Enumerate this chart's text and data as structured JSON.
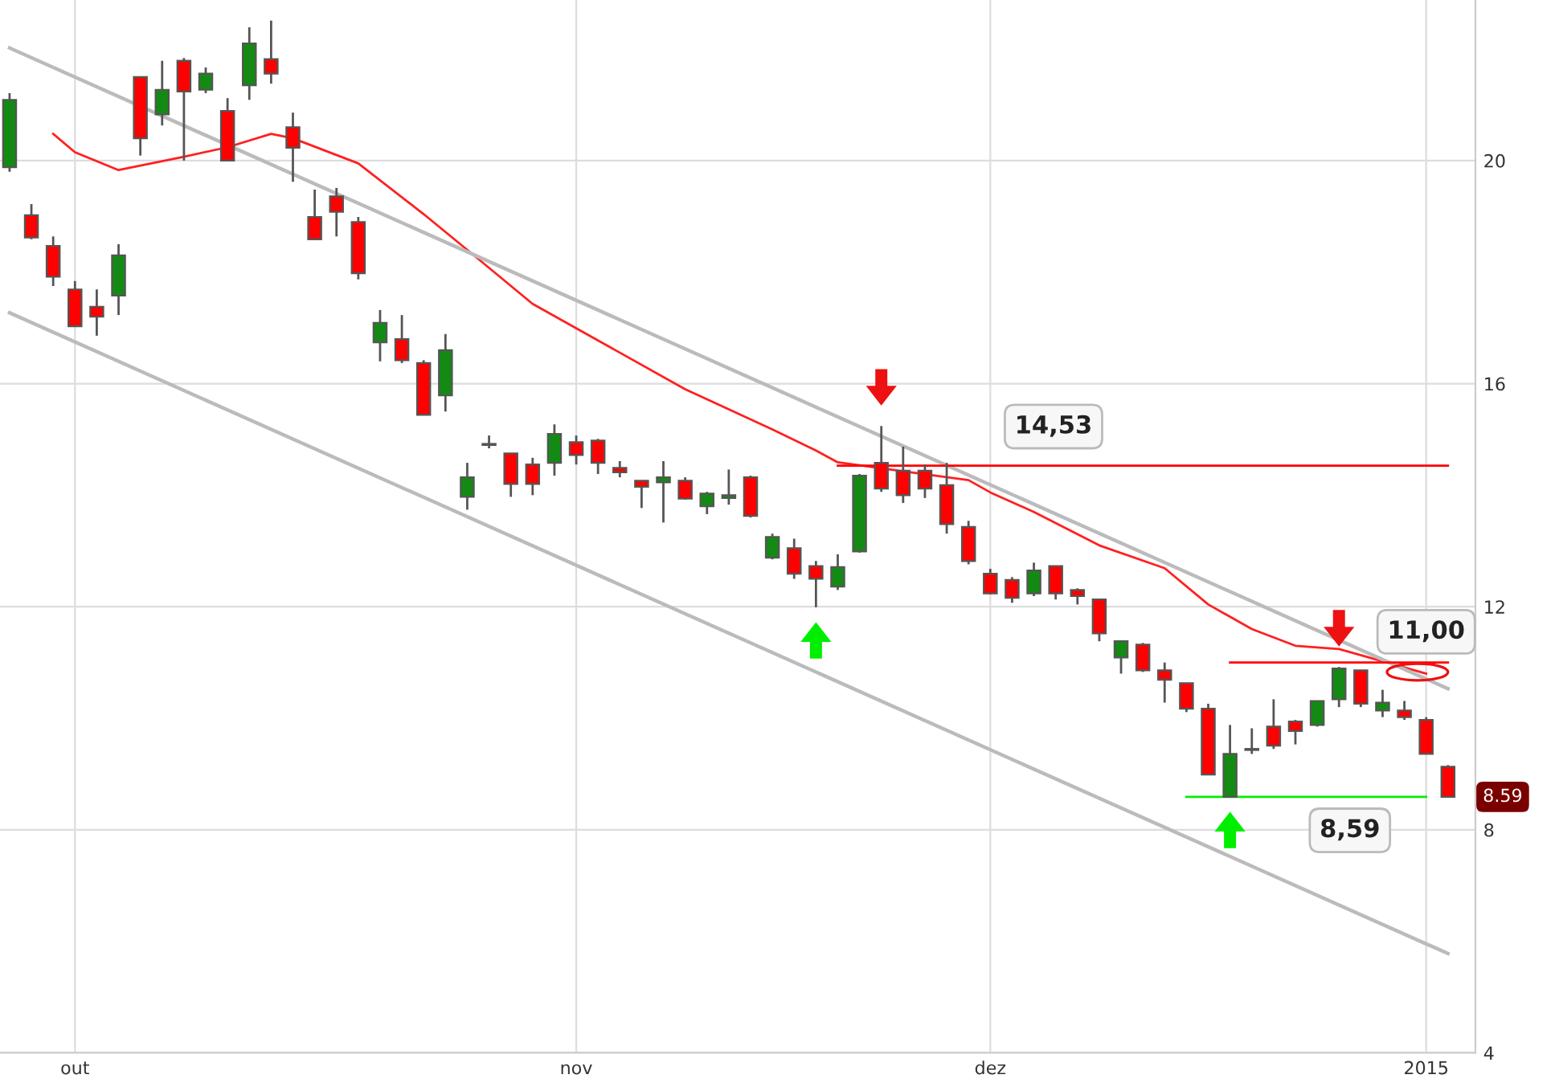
{
  "chart_data": {
    "type": "candlestick",
    "categories": [
      null,
      null,
      null,
      "out",
      null,
      null,
      null,
      null,
      null,
      null,
      null,
      null,
      null,
      null,
      null,
      null,
      null,
      null,
      null,
      null,
      null,
      null,
      null,
      null,
      null,
      null,
      "nov",
      null,
      null,
      null,
      null,
      null,
      null,
      null,
      null,
      null,
      null,
      null,
      null,
      null,
      null,
      null,
      null,
      null,
      null,
      "dez",
      null,
      null,
      null,
      null,
      null,
      null,
      null,
      null,
      null,
      null,
      null,
      null,
      null,
      null,
      null,
      null,
      null,
      null,
      null,
      "2015",
      null
    ],
    "ohlc": [
      [
        19.88,
        21.21,
        19.8,
        21.09
      ],
      [
        19.02,
        19.22,
        18.59,
        18.62
      ],
      [
        18.47,
        18.64,
        17.75,
        17.92
      ],
      [
        17.69,
        17.84,
        17.03,
        17.03
      ],
      [
        17.38,
        17.69,
        16.86,
        17.2
      ],
      [
        17.58,
        18.5,
        17.23,
        18.3
      ],
      [
        21.5,
        21.5,
        20.09,
        20.4
      ],
      [
        20.83,
        21.79,
        20.63,
        21.27
      ],
      [
        21.79,
        21.84,
        20.0,
        21.24
      ],
      [
        21.27,
        21.67,
        21.21,
        21.56
      ],
      [
        20.89,
        21.12,
        20.0,
        20.0
      ],
      [
        21.35,
        22.39,
        21.09,
        22.1
      ],
      [
        21.82,
        22.51,
        21.38,
        21.56
      ],
      [
        20.6,
        20.86,
        19.62,
        20.23
      ],
      [
        18.99,
        19.48,
        18.59,
        18.59
      ],
      [
        19.36,
        19.51,
        18.64,
        19.08
      ],
      [
        18.9,
        18.99,
        17.87,
        17.98
      ],
      [
        16.74,
        17.32,
        16.4,
        17.09
      ],
      [
        16.8,
        17.23,
        16.37,
        16.42
      ],
      [
        16.37,
        16.42,
        15.44,
        15.44
      ],
      [
        15.79,
        16.89,
        15.5,
        16.6
      ],
      [
        13.97,
        14.58,
        13.74,
        14.32
      ],
      [
        14.9,
        15.07,
        14.84,
        14.92
      ],
      [
        14.75,
        14.75,
        13.97,
        14.2
      ],
      [
        14.55,
        14.67,
        14.0,
        14.2
      ],
      [
        14.58,
        15.27,
        14.35,
        15.1
      ],
      [
        14.95,
        15.07,
        14.55,
        14.72
      ],
      [
        14.98,
        15.01,
        14.38,
        14.58
      ],
      [
        14.49,
        14.61,
        14.32,
        14.41
      ],
      [
        14.26,
        14.26,
        13.77,
        14.15
      ],
      [
        14.23,
        14.61,
        13.51,
        14.32
      ],
      [
        14.26,
        14.32,
        13.92,
        13.94
      ],
      [
        13.8,
        14.06,
        13.66,
        14.03
      ],
      [
        13.95,
        14.46,
        13.83,
        14.0
      ],
      [
        14.32,
        14.35,
        13.6,
        13.63
      ],
      [
        12.88,
        13.31,
        12.85,
        13.25
      ],
      [
        13.05,
        13.22,
        12.5,
        12.59
      ],
      [
        12.73,
        12.82,
        11.99,
        12.5
      ],
      [
        12.36,
        12.94,
        12.3,
        12.71
      ],
      [
        12.99,
        14.38,
        12.97,
        14.35
      ],
      [
        14.58,
        15.24,
        14.06,
        14.12
      ],
      [
        14.44,
        14.87,
        13.86,
        14.0
      ],
      [
        14.44,
        14.55,
        13.95,
        14.12
      ],
      [
        14.18,
        14.58,
        13.31,
        13.48
      ],
      [
        13.43,
        13.54,
        12.76,
        12.82
      ],
      [
        12.59,
        12.68,
        12.22,
        12.24
      ],
      [
        12.48,
        12.53,
        12.07,
        12.16
      ],
      [
        12.24,
        12.79,
        12.19,
        12.65
      ],
      [
        12.73,
        12.73,
        12.13,
        12.24
      ],
      [
        12.3,
        12.33,
        12.04,
        12.19
      ],
      [
        12.13,
        12.13,
        11.38,
        11.52
      ],
      [
        11.09,
        11.38,
        10.8,
        11.38
      ],
      [
        11.32,
        11.35,
        10.83,
        10.86
      ],
      [
        10.86,
        11.0,
        10.28,
        10.69
      ],
      [
        10.63,
        10.63,
        10.11,
        10.17
      ],
      [
        10.17,
        10.26,
        8.99,
        8.99
      ],
      [
        8.59,
        9.88,
        8.59,
        9.36
      ],
      [
        9.43,
        9.82,
        9.36,
        9.45
      ],
      [
        9.85,
        10.34,
        9.45,
        9.51
      ],
      [
        9.94,
        9.97,
        9.53,
        9.77
      ],
      [
        9.88,
        10.31,
        9.85,
        10.31
      ],
      [
        10.34,
        10.92,
        10.2,
        10.89
      ],
      [
        10.86,
        10.86,
        10.2,
        10.26
      ],
      [
        10.14,
        10.51,
        10.02,
        10.28
      ],
      [
        10.14,
        10.31,
        9.97,
        10.02
      ],
      [
        9.97,
        10.02,
        9.36,
        9.36
      ],
      [
        9.13,
        9.16,
        8.59,
        8.59
      ]
    ],
    "colors": [
      "#138a13",
      "#ff0000",
      "#ff0000",
      "#ff0000",
      "#ff0000",
      "#138a13",
      "#ff0000",
      "#138a13",
      "#ff0000",
      "#138a13",
      "#ff0000",
      "#138a13",
      "#ff0000",
      "#ff0000",
      "#ff0000",
      "#ff0000",
      "#ff0000",
      "#138a13",
      "#ff0000",
      "#ff0000",
      "#138a13",
      "#138a13",
      "#138a13",
      "#ff0000",
      "#ff0000",
      "#138a13",
      "#ff0000",
      "#ff0000",
      "#ff0000",
      "#ff0000",
      "#138a13",
      "#ff0000",
      "#138a13",
      "#138a13",
      "#ff0000",
      "#138a13",
      "#ff0000",
      "#ff0000",
      "#138a13",
      "#138a13",
      "#ff0000",
      "#ff0000",
      "#ff0000",
      "#ff0000",
      "#ff0000",
      "#ff0000",
      "#ff0000",
      "#138a13",
      "#ff0000",
      "#ff0000",
      "#ff0000",
      "#138a13",
      "#ff0000",
      "#ff0000",
      "#ff0000",
      "#ff0000",
      "#138a13",
      "#138a13",
      "#ff0000",
      "#ff0000",
      "#138a13",
      "#138a13",
      "#ff0000",
      "#138a13",
      "#ff0000",
      "#ff0000",
      "#ff0000"
    ],
    "series": [
      {
        "type": "line",
        "color": "#ff2020",
        "values": [
          null,
          null,
          20.48,
          20.15,
          null,
          19.83,
          null,
          null,
          20.07,
          null,
          20.24,
          null,
          20.48,
          20.4,
          null,
          null,
          19.95,
          null,
          null,
          19.04,
          null,
          18.4,
          null,
          null,
          17.43,
          null,
          null,
          null,
          null,
          null,
          null,
          15.9,
          null,
          null,
          null,
          15.18,
          null,
          14.8,
          14.59,
          null,
          null,
          14.43,
          null,
          null,
          14.27,
          14.05,
          null,
          13.7,
          null,
          null,
          13.1,
          null,
          null,
          12.69,
          null,
          12.04,
          null,
          11.6,
          null,
          11.3,
          null,
          11.24,
          null,
          11.02,
          null,
          10.8,
          null
        ]
      },
      {
        "type": "line",
        "color": "#bbbbbb",
        "values": [
          22.02,
          null,
          null,
          null,
          null,
          null,
          null,
          null,
          null,
          null,
          null,
          null,
          null,
          null,
          null,
          null,
          null,
          null,
          null,
          null,
          null,
          null,
          null,
          null,
          null,
          null,
          null,
          null,
          null,
          null,
          null,
          null,
          null,
          null,
          null,
          null,
          null,
          null,
          null,
          null,
          null,
          null,
          null,
          null,
          null,
          null,
          null,
          null,
          null,
          null,
          null,
          null,
          null,
          null,
          null,
          null,
          null,
          null,
          null,
          null,
          null,
          null,
          null,
          null,
          null,
          null,
          10.53
        ]
      },
      {
        "type": "line",
        "color": "#bbbbbb",
        "values": [
          17.27,
          null,
          null,
          null,
          null,
          null,
          null,
          null,
          null,
          null,
          null,
          null,
          null,
          null,
          null,
          null,
          null,
          null,
          null,
          null,
          null,
          null,
          null,
          null,
          null,
          null,
          null,
          null,
          null,
          null,
          null,
          null,
          null,
          null,
          null,
          null,
          null,
          null,
          null,
          null,
          null,
          null,
          null,
          null,
          null,
          null,
          null,
          null,
          null,
          null,
          null,
          null,
          null,
          null,
          null,
          null,
          null,
          null,
          null,
          null,
          null,
          null,
          null,
          null,
          null,
          null,
          5.78
        ]
      },
      {
        "type": "line",
        "name": "14,53",
        "color": "#ff0000",
        "values": [
          null,
          null,
          null,
          null,
          null,
          null,
          null,
          null,
          null,
          null,
          null,
          null,
          null,
          null,
          null,
          null,
          null,
          null,
          null,
          null,
          null,
          null,
          null,
          null,
          null,
          null,
          null,
          null,
          null,
          null,
          null,
          null,
          null,
          null,
          null,
          null,
          null,
          null,
          14.53,
          null,
          null,
          null,
          null,
          null,
          null,
          null,
          null,
          null,
          null,
          null,
          null,
          null,
          null,
          null,
          null,
          null,
          null,
          null,
          null,
          null,
          null,
          null,
          null,
          null,
          null,
          null,
          14.53
        ]
      },
      {
        "type": "line",
        "name": "11,00",
        "color": "#ff0000",
        "values": [
          null,
          null,
          null,
          null,
          null,
          null,
          null,
          null,
          null,
          null,
          null,
          null,
          null,
          null,
          null,
          null,
          null,
          null,
          null,
          null,
          null,
          null,
          null,
          null,
          null,
          null,
          null,
          null,
          null,
          null,
          null,
          null,
          null,
          null,
          null,
          null,
          null,
          null,
          null,
          null,
          null,
          null,
          null,
          null,
          null,
          null,
          null,
          null,
          null,
          null,
          null,
          null,
          null,
          null,
          null,
          null,
          11.0,
          null,
          null,
          null,
          null,
          null,
          null,
          null,
          null,
          null,
          11.0
        ]
      },
      {
        "type": "line",
        "name": "8,59",
        "color": "#00ee00",
        "values": [
          null,
          null,
          null,
          null,
          null,
          null,
          null,
          null,
          null,
          null,
          null,
          null,
          null,
          null,
          null,
          null,
          null,
          null,
          null,
          null,
          null,
          null,
          null,
          null,
          null,
          null,
          null,
          null,
          null,
          null,
          null,
          null,
          null,
          null,
          null,
          null,
          null,
          null,
          null,
          null,
          null,
          null,
          null,
          null,
          null,
          null,
          null,
          null,
          null,
          null,
          null,
          null,
          null,
          null,
          8.59,
          null,
          null,
          null,
          null,
          null,
          null,
          null,
          null,
          null,
          null,
          8.59,
          null
        ]
      }
    ],
    "annotations": [
      "8.59"
    ],
    "ylim": [
      4,
      22.88
    ],
    "yticks": [
      4,
      8,
      12,
      16,
      20
    ],
    "grid": true
  }
}
